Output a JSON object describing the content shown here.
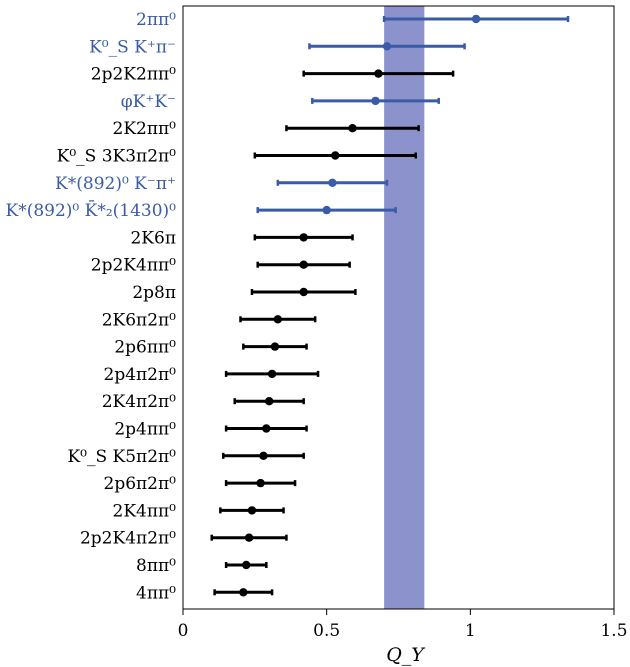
{
  "chart_data": {
    "type": "scatter",
    "subtype": "horizontal error-bar plot",
    "xlabel": "Q_Υ",
    "xlim": [
      0,
      1.5
    ],
    "x_ticks": [
      0,
      0.5,
      1,
      1.5
    ],
    "x_tick_labels": [
      "0",
      "0.5",
      "1",
      "1.5"
    ],
    "band": {
      "x_min": 0.7,
      "x_max": 0.84,
      "color": "#8c92cc"
    },
    "colors": {
      "highlight": "#3a5ba8",
      "default": "#000000"
    },
    "points": [
      {
        "label": "2ππ⁰",
        "x": 1.02,
        "xerr_low": 0.7,
        "xerr_high": 1.34,
        "highlight": true
      },
      {
        "label": "K⁰_S K⁺π⁻",
        "x": 0.71,
        "xerr_low": 0.44,
        "xerr_high": 0.98,
        "highlight": true
      },
      {
        "label": "2p2K2ππ⁰",
        "x": 0.68,
        "xerr_low": 0.42,
        "xerr_high": 0.94,
        "highlight": false
      },
      {
        "label": "φK⁺K⁻",
        "x": 0.67,
        "xerr_low": 0.45,
        "xerr_high": 0.89,
        "highlight": true
      },
      {
        "label": "2K2ππ⁰",
        "x": 0.59,
        "xerr_low": 0.36,
        "xerr_high": 0.82,
        "highlight": false
      },
      {
        "label": "K⁰_S 3K3π2π⁰",
        "x": 0.53,
        "xerr_low": 0.25,
        "xerr_high": 0.81,
        "highlight": false
      },
      {
        "label": "K*(892)⁰ K⁻π⁺",
        "x": 0.52,
        "xerr_low": 0.33,
        "xerr_high": 0.71,
        "highlight": true
      },
      {
        "label": "K*(892)⁰ K̄*₂(1430)⁰",
        "x": 0.5,
        "xerr_low": 0.26,
        "xerr_high": 0.74,
        "highlight": true
      },
      {
        "label": "2K6π",
        "x": 0.42,
        "xerr_low": 0.25,
        "xerr_high": 0.59,
        "highlight": false
      },
      {
        "label": "2p2K4ππ⁰",
        "x": 0.42,
        "xerr_low": 0.26,
        "xerr_high": 0.58,
        "highlight": false
      },
      {
        "label": "2p8π",
        "x": 0.42,
        "xerr_low": 0.24,
        "xerr_high": 0.6,
        "highlight": false
      },
      {
        "label": "2K6π2π⁰",
        "x": 0.33,
        "xerr_low": 0.2,
        "xerr_high": 0.46,
        "highlight": false
      },
      {
        "label": "2p6ππ⁰",
        "x": 0.32,
        "xerr_low": 0.21,
        "xerr_high": 0.43,
        "highlight": false
      },
      {
        "label": "2p4π2π⁰",
        "x": 0.31,
        "xerr_low": 0.15,
        "xerr_high": 0.47,
        "highlight": false
      },
      {
        "label": "2K4π2π⁰",
        "x": 0.3,
        "xerr_low": 0.18,
        "xerr_high": 0.42,
        "highlight": false
      },
      {
        "label": "2p4ππ⁰",
        "x": 0.29,
        "xerr_low": 0.15,
        "xerr_high": 0.43,
        "highlight": false
      },
      {
        "label": "K⁰_S K5π2π⁰",
        "x": 0.28,
        "xerr_low": 0.14,
        "xerr_high": 0.42,
        "highlight": false
      },
      {
        "label": "2p6π2π⁰",
        "x": 0.27,
        "xerr_low": 0.15,
        "xerr_high": 0.39,
        "highlight": false
      },
      {
        "label": "2K4ππ⁰",
        "x": 0.24,
        "xerr_low": 0.13,
        "xerr_high": 0.35,
        "highlight": false
      },
      {
        "label": "2p2K4π2π⁰",
        "x": 0.23,
        "xerr_low": 0.1,
        "xerr_high": 0.36,
        "highlight": false
      },
      {
        "label": "8ππ⁰",
        "x": 0.22,
        "xerr_low": 0.15,
        "xerr_high": 0.29,
        "highlight": false
      },
      {
        "label": "4ππ⁰",
        "x": 0.21,
        "xerr_low": 0.11,
        "xerr_high": 0.31,
        "highlight": false
      }
    ]
  }
}
